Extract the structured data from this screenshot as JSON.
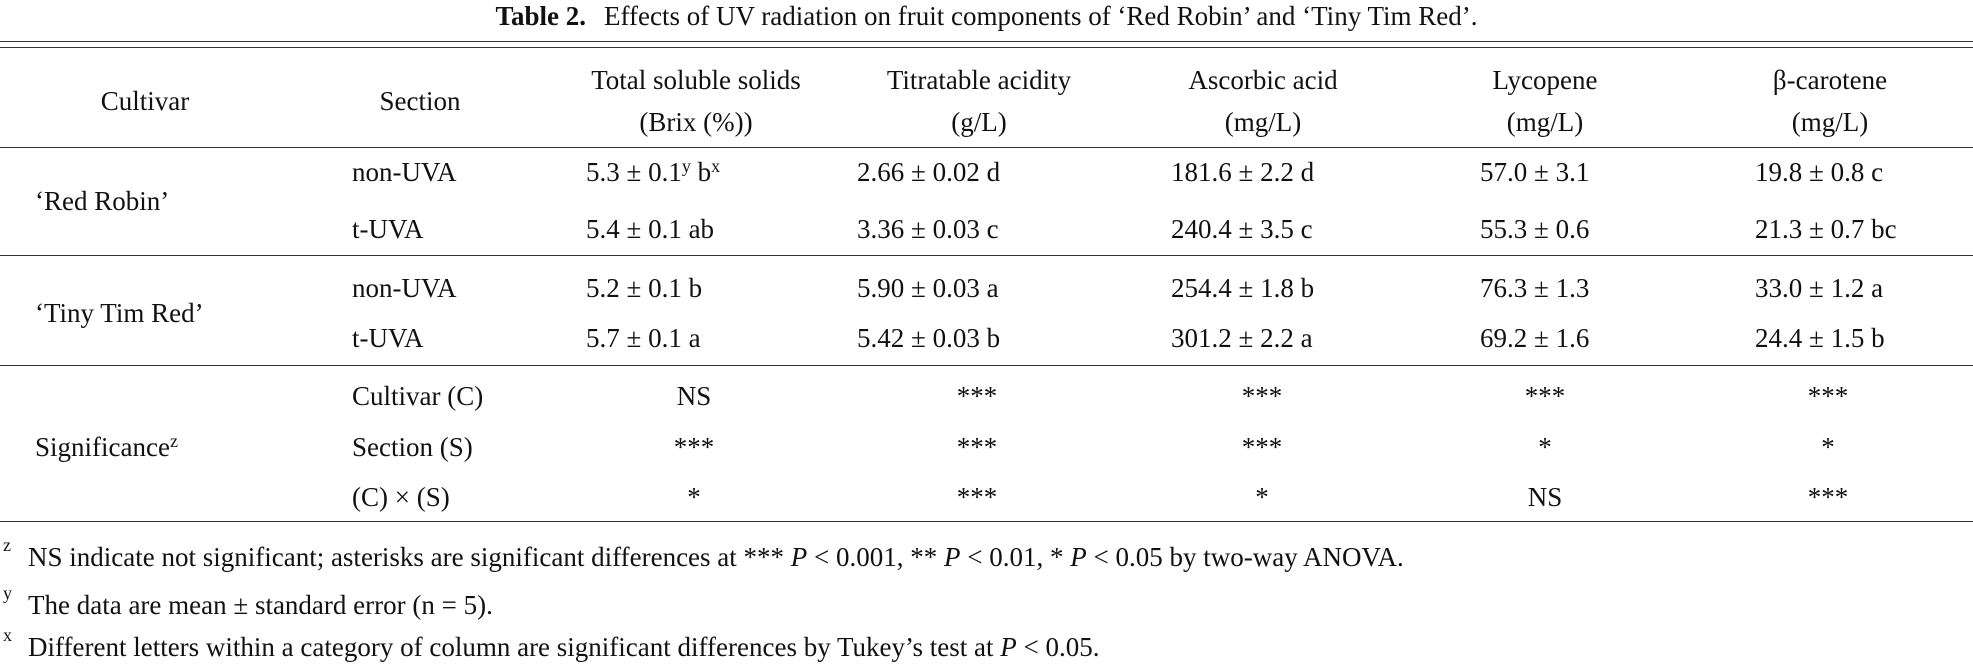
{
  "title": {
    "label": "Table  2.",
    "text": "Effects of UV radiation on fruit components of ‘Red Robin’ and ‘Tiny Tim Red’."
  },
  "table": {
    "columns": [
      [
        "Cultivar"
      ],
      [
        "Section"
      ],
      [
        "Total soluble solids",
        "(Brix (%))"
      ],
      [
        "Titratable acidity",
        "(g/L)"
      ],
      [
        "Ascorbic acid",
        "(mg/L)"
      ],
      [
        "Lycopene",
        "(mg/L)"
      ],
      [
        "β-carotene",
        "(mg/L)"
      ]
    ],
    "groups": [
      {
        "name": "‘Red Robin’",
        "rows": [
          {
            "section": "non-UVA",
            "cells": [
              [
                "5.3 ± 0.1",
                {
                  "sup": "y"
                },
                " b",
                {
                  "sup": "x"
                }
              ],
              "2.66 ± 0.02 d",
              "181.6 ± 2.2 d",
              "57.0 ± 3.1",
              "19.8 ± 0.8 c"
            ]
          },
          {
            "section": "t-UVA",
            "cells": [
              "5.4 ± 0.1 ab",
              "3.36 ± 0.03 c",
              "240.4 ± 3.5 c",
              "55.3 ± 0.6",
              "21.3 ± 0.7 bc"
            ]
          }
        ]
      },
      {
        "name": "‘Tiny Tim Red’",
        "rows": [
          {
            "section": "non-UVA",
            "cells": [
              "5.2 ± 0.1 b",
              "5.90 ± 0.03 a",
              "254.4 ± 1.8 b",
              "76.3 ± 1.3",
              "33.0 ± 1.2 a"
            ]
          },
          {
            "section": "t-UVA",
            "cells": [
              "5.7 ± 0.1 a",
              "5.42 ± 0.03 b",
              "301.2 ± 2.2 a",
              "69.2 ± 1.6",
              "24.4 ± 1.5 b"
            ]
          }
        ]
      }
    ],
    "significance": {
      "name": [
        "Significance",
        {
          "sup": "z"
        }
      ],
      "rows": [
        {
          "section": "Cultivar (C)",
          "cells": [
            "NS",
            "***",
            "***",
            "***",
            "***"
          ]
        },
        {
          "section": "Section (S)",
          "cells": [
            "***",
            "***",
            "***",
            "*",
            "*"
          ]
        },
        {
          "section": "(C) × (S)",
          "cells": [
            "*",
            "***",
            "*",
            "NS",
            "***"
          ]
        }
      ]
    }
  },
  "footnotes": [
    {
      "mark": "z",
      "text": [
        "NS indicate not significant; asterisks are significant differences at *** ",
        {
          "i": "P"
        },
        " < 0.001, ** ",
        {
          "i": "P"
        },
        " < 0.01, * ",
        {
          "i": "P"
        },
        " < 0.05 by two-way ANOVA."
      ]
    },
    {
      "mark": "y",
      "text": [
        "The data are mean ± standard error (n = 5)."
      ]
    },
    {
      "mark": "x",
      "text": [
        "Different letters within a category of column are significant differences by Tukey’s test at ",
        {
          "i": "P"
        },
        " < 0.05."
      ]
    }
  ]
}
